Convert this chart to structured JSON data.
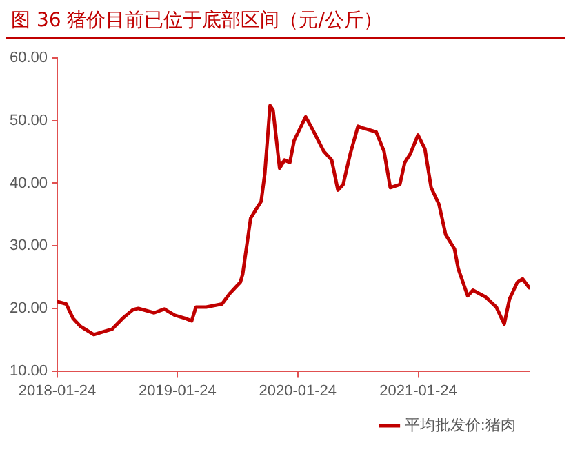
{
  "chart_data": {
    "type": "line",
    "title": "图 36  猪价目前已位于底部区间（元/公斤）",
    "x": [
      "2018-01-24",
      "2018-02-20",
      "2018-03-13",
      "2018-04-05",
      "2018-05-15",
      "2018-06-08",
      "2018-07-10",
      "2018-08-10",
      "2018-09-11",
      "2018-09-27",
      "2018-11-14",
      "2018-12-15",
      "2019-01-16",
      "2019-02-17",
      "2019-03-08",
      "2019-03-21",
      "2019-04-21",
      "2019-06-08",
      "2019-07-02",
      "2019-08-03",
      "2019-08-10",
      "2019-09-03",
      "2019-09-24",
      "2019-10-05",
      "2019-10-16",
      "2019-11-01",
      "2019-11-10",
      "2019-11-30",
      "2019-12-15",
      "2019-12-31",
      "2020-01-13",
      "2020-02-17",
      "2020-03-04",
      "2020-04-12",
      "2020-05-06",
      "2020-05-25",
      "2020-06-10",
      "2020-07-01",
      "2020-07-25",
      "2020-08-10",
      "2020-09-18",
      "2020-10-12",
      "2020-10-31",
      "2020-11-29",
      "2020-12-14",
      "2020-12-30",
      "2021-01-23",
      "2021-02-13",
      "2021-03-04",
      "2021-03-28",
      "2021-04-17",
      "2021-05-14",
      "2021-05-25",
      "2021-06-23",
      "2021-07-09",
      "2021-08-17",
      "2021-09-18",
      "2021-10-12",
      "2021-10-28",
      "2021-11-21",
      "2021-12-07",
      "2021-12-27"
    ],
    "series": [
      {
        "name": "平均批发价:猪肉",
        "color": "#c00000",
        "values": [
          21.1,
          20.7,
          18.4,
          17.1,
          15.8,
          16.2,
          16.7,
          18.4,
          19.8,
          20.0,
          19.3,
          19.9,
          18.9,
          18.4,
          18.0,
          20.2,
          20.2,
          20.7,
          22.4,
          24.2,
          25.5,
          34.4,
          36.2,
          37.1,
          41.5,
          52.4,
          51.7,
          42.4,
          43.7,
          43.3,
          46.8,
          50.6,
          49.1,
          45.1,
          43.7,
          38.9,
          39.8,
          44.6,
          49.1,
          48.8,
          48.2,
          45.1,
          39.3,
          39.8,
          43.3,
          44.6,
          47.7,
          45.5,
          39.3,
          36.6,
          31.8,
          29.5,
          26.4,
          22.0,
          22.9,
          21.8,
          20.2,
          17.5,
          21.5,
          24.2,
          24.7,
          23.3
        ]
      }
    ],
    "xlim": [
      "2018-01-24",
      "2021-12-28"
    ],
    "xticks": [
      "2018-01-24",
      "2019-01-24",
      "2020-01-24",
      "2021-01-24"
    ],
    "ylim": [
      10,
      60
    ],
    "yticks": [
      {
        "value": 10,
        "label": "10.00"
      },
      {
        "value": 20,
        "label": "20.00"
      },
      {
        "value": 30,
        "label": "30.00"
      },
      {
        "value": 40,
        "label": "40.00"
      },
      {
        "value": 50,
        "label": "50.00"
      },
      {
        "value": 60,
        "label": "60.00"
      }
    ],
    "grid": false,
    "legend": "bottom right",
    "marker": "none",
    "line_style": "solid"
  }
}
